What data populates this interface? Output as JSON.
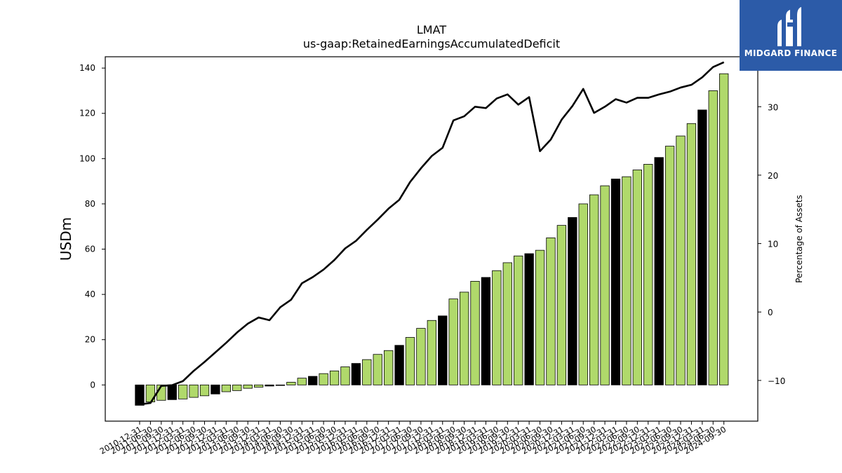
{
  "branding": {
    "logo_text": "MIDGARD FINANCE",
    "logo_bg": "#2c5ba8"
  },
  "chart_data": {
    "type": "bar",
    "title": "LMAT",
    "subtitle": "us-gaap:RetainedEarningsAccumulatedDeficit",
    "ylabel": "USDm",
    "y2label": "Percentage of Assets",
    "ylim": [
      -16,
      145
    ],
    "y2lim": [
      -15.95,
      37.3
    ],
    "yticks": [
      0,
      20,
      40,
      60,
      80,
      100,
      120,
      140
    ],
    "y2ticks": [
      -10,
      0,
      10,
      20,
      30
    ],
    "grid": false,
    "colors": {
      "bar": "#b0d96b",
      "bar_alt": "#000000",
      "line": "#000000"
    },
    "categories": [
      "2010-12-31",
      "2011-06-30",
      "2011-09-30",
      "2011-12-31",
      "2012-03-31",
      "2012-06-30",
      "2012-09-30",
      "2012-12-31",
      "2013-03-31",
      "2013-06-30",
      "2013-09-30",
      "2013-12-31",
      "2014-03-31",
      "2014-06-30",
      "2014-09-30",
      "2014-12-31",
      "2015-03-31",
      "2015-06-30",
      "2015-09-30",
      "2015-12-31",
      "2016-03-31",
      "2016-06-30",
      "2016-09-30",
      "2016-12-31",
      "2017-03-31",
      "2017-06-30",
      "2017-09-30",
      "2017-12-31",
      "2018-03-31",
      "2018-06-30",
      "2018-09-30",
      "2018-12-31",
      "2019-03-31",
      "2019-06-30",
      "2019-09-30",
      "2019-12-31",
      "2020-03-31",
      "2020-06-30",
      "2020-09-30",
      "2020-12-31",
      "2021-03-31",
      "2021-06-30",
      "2021-09-30",
      "2021-12-31",
      "2022-03-31",
      "2022-06-30",
      "2022-09-30",
      "2022-12-31",
      "2023-03-31",
      "2023-06-30",
      "2023-09-30",
      "2023-12-31",
      "2024-03-31",
      "2024-06-30",
      "2024-09-30"
    ],
    "series": [
      {
        "kind": "bar",
        "values": [
          -9,
          -7.5,
          -6.8,
          -6.5,
          -6.2,
          -5.5,
          -4.8,
          -4,
          -3,
          -2.5,
          -1.5,
          -1,
          -0.5,
          0,
          1.2,
          3,
          3.8,
          5,
          6.2,
          8,
          9.5,
          11.2,
          13.5,
          15.2,
          17.5,
          21,
          25,
          28.5,
          30.5,
          38,
          41,
          45.8,
          47.5,
          50.5,
          54,
          57,
          58,
          59.5,
          65,
          70.5,
          74,
          80,
          84,
          88,
          91,
          92,
          95,
          97.5,
          100.5,
          105.5,
          110,
          115.5,
          121.5,
          130,
          137.5
        ],
        "highlight": [
          0,
          3,
          7,
          12,
          16,
          20,
          24,
          28,
          32,
          36,
          40,
          44,
          48,
          52
        ]
      },
      {
        "kind": "line",
        "axis": "right",
        "values": [
          -13.5,
          -13.3,
          -10.8,
          -10.7,
          -10.1,
          -8.6,
          -7.3,
          -5.9,
          -4.5,
          -3,
          -1.7,
          -0.8,
          -1.2,
          0.7,
          1.8,
          4.2,
          5.1,
          6.2,
          7.6,
          9.3,
          10.4,
          12,
          13.5,
          15.1,
          16.4,
          19,
          21,
          22.8,
          24,
          28,
          28.6,
          30,
          29.8,
          31.2,
          31.8,
          30.3,
          31.4,
          23.5,
          25.2,
          28.1,
          30.1,
          32.6,
          29.1,
          30,
          31.1,
          30.6,
          31.3,
          31.3,
          31.8,
          32.2,
          32.8,
          33.2,
          34.3,
          35.8,
          36.5
        ]
      }
    ]
  }
}
